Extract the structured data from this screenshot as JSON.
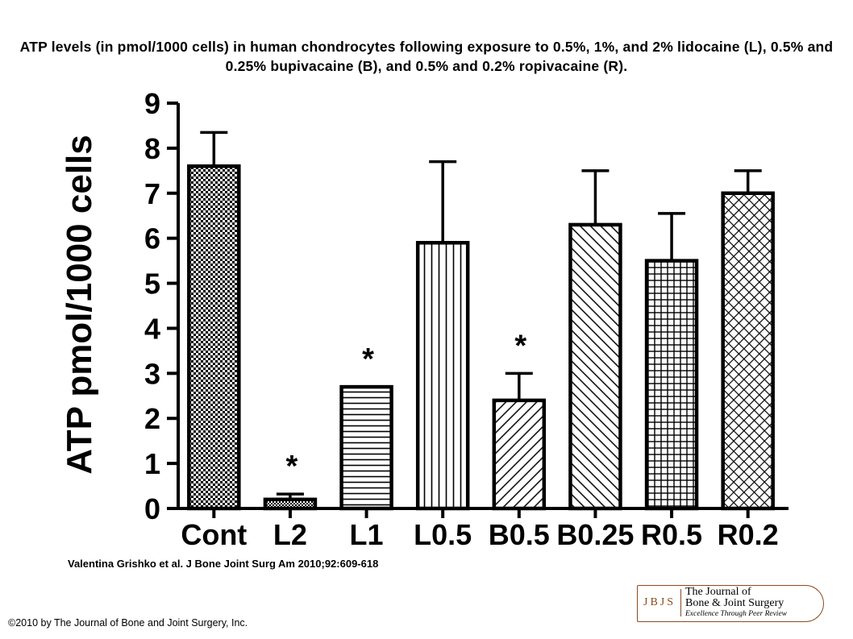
{
  "header": {
    "title": "ATP levels (in pmol/1000 cells) in human chondrocytes following exposure to 0.5%, 1%, and 2% lidocaine (L), 0.5% and 0.25% bupivacaine (B), and 0.5% and 0.2% ropivacaine (R)."
  },
  "footer": {
    "citation": "Valentina Grishko et al. J Bone Joint Surg Am 2010;92:609-618",
    "copyright": "©2010 by The Journal of Bone and Joint Surgery, Inc."
  },
  "logo": {
    "abbr": "JBJS",
    "name_line1": "The Journal of",
    "name_line2": "Bone & Joint Surgery",
    "tagline": "Excellence Through Peer Review"
  },
  "chart_data": {
    "type": "bar",
    "title": "",
    "xlabel": "",
    "ylabel": "ATP pmol/1000 cells",
    "ylim": [
      0,
      9
    ],
    "yticks": [
      "0",
      "1",
      "2",
      "3",
      "4",
      "5",
      "6",
      "7",
      "8",
      "9"
    ],
    "categories": [
      "Cont",
      "L2",
      "L1",
      "L0.5",
      "B0.5",
      "B0.25",
      "R0.5",
      "R0.2"
    ],
    "values": [
      7.6,
      0.2,
      2.7,
      5.9,
      2.4,
      6.3,
      5.5,
      7.0
    ],
    "error": [
      0.75,
      0.12,
      null,
      1.8,
      0.6,
      1.2,
      1.05,
      0.5
    ],
    "significant": [
      false,
      true,
      true,
      false,
      true,
      false,
      false,
      false
    ],
    "significance_marker": "*",
    "patterns": [
      "dots",
      "dots-fine",
      "horizontal",
      "vertical",
      "diagonal-forward",
      "diagonal-back",
      "grid",
      "crosshatch-diagonal"
    ],
    "grid": false,
    "legend": "none"
  }
}
